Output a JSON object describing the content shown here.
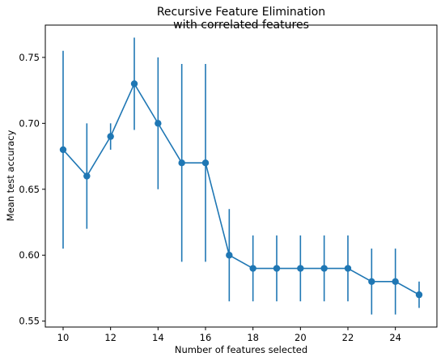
{
  "chart_data": {
    "type": "line",
    "title": "Recursive Feature Elimination\nwith correlated features",
    "xlabel": "Number of features selected",
    "ylabel": "Mean test accuracy",
    "xlim": [
      9.25,
      25.75
    ],
    "ylim": [
      0.5455,
      0.7745
    ],
    "xticks": [
      10,
      12,
      14,
      16,
      18,
      20,
      22,
      24
    ],
    "yticks": [
      0.55,
      0.6,
      0.65,
      0.7,
      0.75
    ],
    "ytick_labels": [
      "0.55",
      "0.60",
      "0.65",
      "0.70",
      "0.75"
    ],
    "series_color": "#1f77b4",
    "grid": false,
    "series": [
      {
        "x": [
          10,
          11,
          12,
          13,
          14,
          15,
          16,
          17,
          18,
          19,
          20,
          21,
          22,
          23,
          24,
          25
        ],
        "y": [
          0.68,
          0.66,
          0.69,
          0.73,
          0.7,
          0.67,
          0.67,
          0.6,
          0.59,
          0.59,
          0.59,
          0.59,
          0.59,
          0.58,
          0.58,
          0.57
        ],
        "error_low": [
          0.605,
          0.62,
          0.68,
          0.695,
          0.65,
          0.595,
          0.595,
          0.565,
          0.565,
          0.565,
          0.565,
          0.565,
          0.565,
          0.555,
          0.555,
          0.56
        ],
        "error_high": [
          0.755,
          0.7,
          0.7,
          0.765,
          0.75,
          0.745,
          0.745,
          0.635,
          0.615,
          0.615,
          0.615,
          0.615,
          0.615,
          0.605,
          0.605,
          0.58
        ]
      }
    ]
  }
}
